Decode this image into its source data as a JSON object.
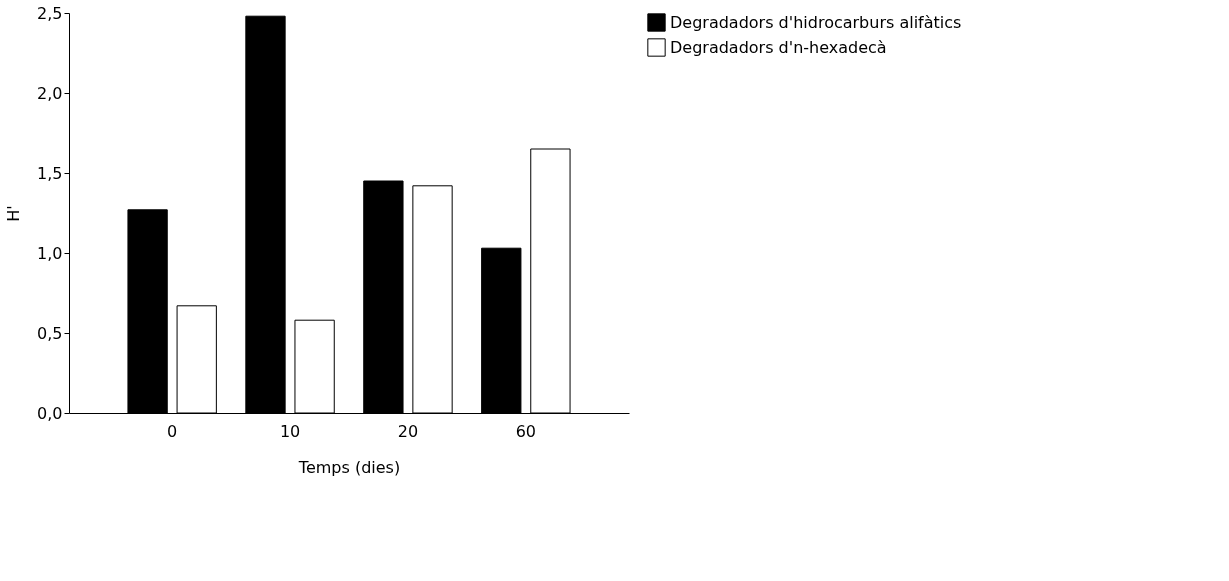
{
  "chart_data": {
    "type": "bar",
    "xlabel": "Temps (dies)",
    "ylabel": "H'",
    "categories": [
      "0",
      "10",
      "20",
      "60"
    ],
    "series": [
      {
        "name": "Degradadors d'hidrocarburs alifàtics",
        "color": "#000000",
        "values": [
          1.27,
          2.48,
          1.45,
          1.03
        ]
      },
      {
        "name": "Degradadors d'n-hexadecà",
        "color": "#ffffff",
        "values": [
          0.67,
          0.58,
          1.42,
          1.65
        ]
      }
    ],
    "ylim": [
      0,
      2.5
    ],
    "yticks": [
      {
        "value": 0,
        "label": "0,0"
      },
      {
        "value": 0.5,
        "label": "0,5"
      },
      {
        "value": 1.0,
        "label": "1,0"
      },
      {
        "value": 1.5,
        "label": "1,5"
      },
      {
        "value": 2.0,
        "label": "2,0"
      },
      {
        "value": 2.5,
        "label": "2,5"
      }
    ],
    "grid": false,
    "legend": "top right"
  }
}
